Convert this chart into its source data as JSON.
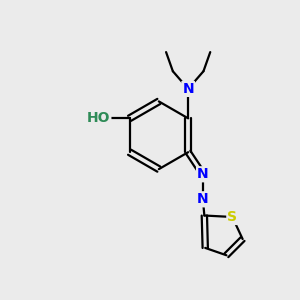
{
  "bg_color": "#ebebeb",
  "bond_color": "#000000",
  "bond_width": 1.6,
  "atom_colors": {
    "N": "#0000ff",
    "O": "#ff0000",
    "S": "#cccc00",
    "H": "#2e8b57",
    "C": "#000000"
  },
  "font_size": 10,
  "figsize": [
    3.0,
    3.0
  ],
  "dpi": 100
}
